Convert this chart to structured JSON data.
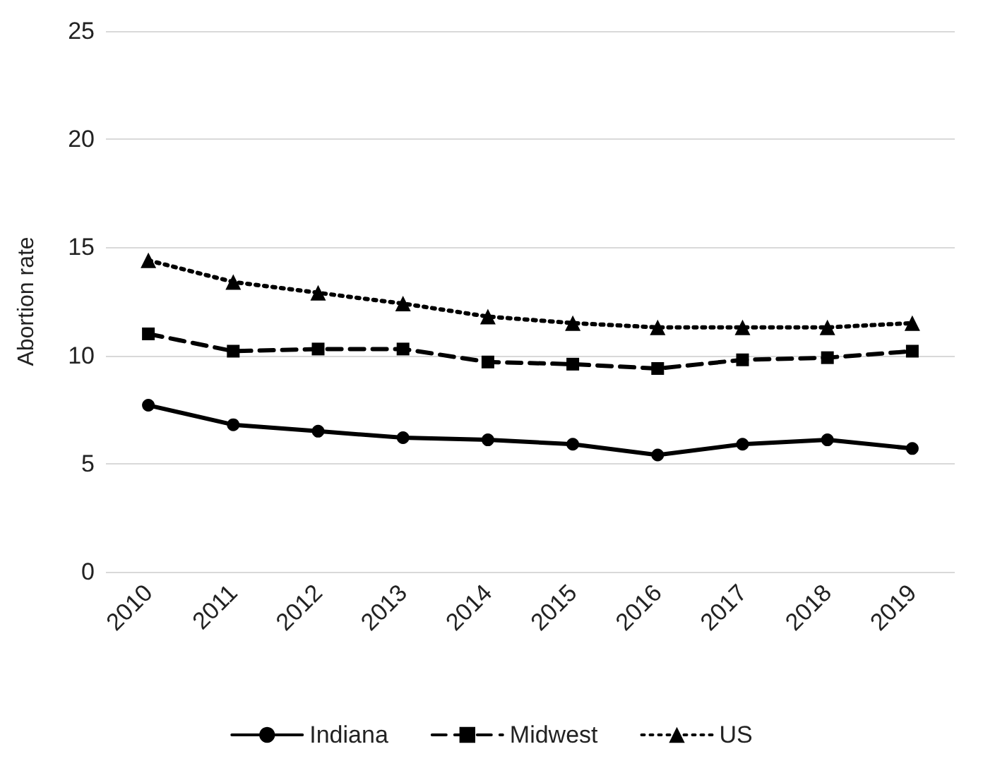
{
  "chart_data": {
    "type": "line",
    "ylabel": "Abortion rate",
    "categories": [
      "2010",
      "2011",
      "2012",
      "2013",
      "2014",
      "2015",
      "2016",
      "2017",
      "2018",
      "2019"
    ],
    "series": [
      {
        "name": "Indiana",
        "color": "#000000",
        "marker": "circle",
        "line_style": "solid",
        "values": [
          7.7,
          6.8,
          6.5,
          6.2,
          6.1,
          5.9,
          5.4,
          5.9,
          6.1,
          5.7
        ]
      },
      {
        "name": "Midwest",
        "color": "#000000",
        "marker": "square",
        "line_style": "dashed",
        "values": [
          11.0,
          10.2,
          10.3,
          10.3,
          9.7,
          9.6,
          9.4,
          9.8,
          9.9,
          10.2
        ]
      },
      {
        "name": "US",
        "color": "#000000",
        "marker": "triangle",
        "line_style": "dotted",
        "values": [
          14.4,
          13.4,
          12.9,
          12.4,
          11.8,
          11.5,
          11.3,
          11.3,
          11.3,
          11.5
        ]
      }
    ],
    "ylim": [
      0,
      25
    ],
    "yticks": [
      0,
      5,
      10,
      15,
      20,
      25
    ],
    "grid": "y",
    "legend": "bottom"
  }
}
